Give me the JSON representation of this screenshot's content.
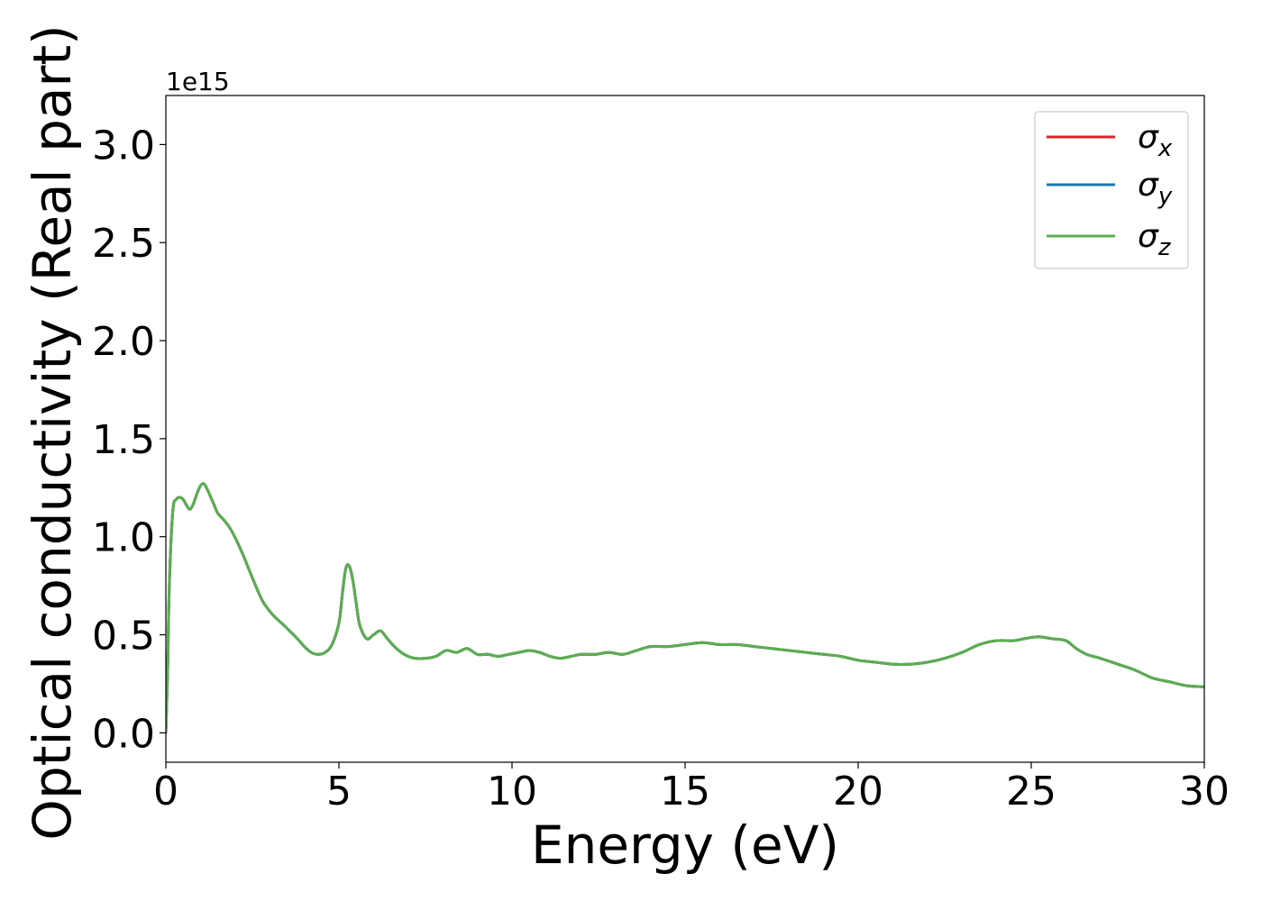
{
  "chart_data": {
    "type": "line",
    "xlabel": "Energy (eV)",
    "ylabel": "Optical conductivity (Real part)",
    "y_offset_label": "1e15",
    "xlim": [
      0,
      30
    ],
    "ylim": [
      -0.15,
      3.25
    ],
    "x_ticks": [
      0,
      5,
      10,
      15,
      20,
      25,
      30
    ],
    "x_tick_labels": [
      "0",
      "5",
      "10",
      "15",
      "20",
      "25",
      "30"
    ],
    "y_ticks": [
      0.0,
      0.5,
      1.0,
      1.5,
      2.0,
      2.5,
      3.0
    ],
    "y_tick_labels": [
      "0.0",
      "0.5",
      "1.0",
      "1.5",
      "2.0",
      "2.5",
      "3.0"
    ],
    "grid": false,
    "legend_position": "top-right",
    "x": [
      0,
      0.05,
      0.1,
      0.2,
      0.3,
      0.4,
      0.5,
      0.6,
      0.7,
      0.8,
      0.9,
      1.0,
      1.1,
      1.2,
      1.3,
      1.4,
      1.5,
      1.7,
      1.9,
      2.2,
      2.5,
      2.8,
      3.1,
      3.4,
      3.8,
      4.0,
      4.2,
      4.4,
      4.6,
      4.8,
      5.0,
      5.1,
      5.2,
      5.3,
      5.4,
      5.5,
      5.6,
      5.8,
      6.0,
      6.2,
      6.4,
      6.6,
      6.8,
      7.0,
      7.2,
      7.5,
      7.8,
      8.1,
      8.4,
      8.7,
      9.0,
      9.3,
      9.6,
      9.9,
      10.2,
      10.5,
      10.8,
      11.1,
      11.4,
      11.7,
      12.0,
      12.4,
      12.8,
      13.2,
      13.6,
      14.0,
      14.5,
      15.0,
      15.5,
      16.0,
      16.5,
      17.0,
      17.5,
      18.0,
      18.5,
      19.0,
      19.5,
      20.0,
      20.5,
      21.0,
      21.5,
      22.0,
      22.5,
      23.0,
      23.5,
      24.0,
      24.5,
      24.8,
      25.2,
      25.6,
      26.0,
      26.3,
      26.6,
      27.0,
      27.5,
      28.0,
      28.5,
      29.0,
      29.5,
      30.0
    ],
    "series": [
      {
        "name": "σx",
        "color": "#d62728",
        "values": [
          0.0,
          0.3,
          0.75,
          1.13,
          1.19,
          1.2,
          1.19,
          1.16,
          1.14,
          1.17,
          1.22,
          1.26,
          1.27,
          1.24,
          1.2,
          1.16,
          1.12,
          1.08,
          1.03,
          0.92,
          0.79,
          0.67,
          0.6,
          0.55,
          0.48,
          0.44,
          0.41,
          0.4,
          0.41,
          0.45,
          0.56,
          0.71,
          0.84,
          0.85,
          0.78,
          0.66,
          0.55,
          0.48,
          0.5,
          0.52,
          0.48,
          0.44,
          0.41,
          0.39,
          0.38,
          0.38,
          0.39,
          0.42,
          0.41,
          0.43,
          0.4,
          0.4,
          0.39,
          0.4,
          0.41,
          0.42,
          0.41,
          0.39,
          0.38,
          0.39,
          0.4,
          0.4,
          0.41,
          0.4,
          0.42,
          0.44,
          0.44,
          0.45,
          0.46,
          0.45,
          0.45,
          0.44,
          0.43,
          0.42,
          0.41,
          0.4,
          0.39,
          0.37,
          0.36,
          0.35,
          0.35,
          0.36,
          0.38,
          0.41,
          0.45,
          0.47,
          0.47,
          0.48,
          0.49,
          0.48,
          0.47,
          0.43,
          0.4,
          0.38,
          0.35,
          0.32,
          0.28,
          0.26,
          0.24,
          0.235
        ]
      },
      {
        "name": "σy",
        "color": "#1f77b4",
        "values": [
          0.0,
          0.3,
          0.75,
          1.13,
          1.19,
          1.2,
          1.19,
          1.16,
          1.14,
          1.17,
          1.22,
          1.26,
          1.27,
          1.24,
          1.2,
          1.16,
          1.12,
          1.08,
          1.03,
          0.92,
          0.79,
          0.67,
          0.6,
          0.55,
          0.48,
          0.44,
          0.41,
          0.4,
          0.41,
          0.45,
          0.56,
          0.71,
          0.84,
          0.85,
          0.78,
          0.66,
          0.55,
          0.48,
          0.5,
          0.52,
          0.48,
          0.44,
          0.41,
          0.39,
          0.38,
          0.38,
          0.39,
          0.42,
          0.41,
          0.43,
          0.4,
          0.4,
          0.39,
          0.4,
          0.41,
          0.42,
          0.41,
          0.39,
          0.38,
          0.39,
          0.4,
          0.4,
          0.41,
          0.4,
          0.42,
          0.44,
          0.44,
          0.45,
          0.46,
          0.45,
          0.45,
          0.44,
          0.43,
          0.42,
          0.41,
          0.4,
          0.39,
          0.37,
          0.36,
          0.35,
          0.35,
          0.36,
          0.38,
          0.41,
          0.45,
          0.47,
          0.47,
          0.48,
          0.49,
          0.48,
          0.47,
          0.43,
          0.4,
          0.38,
          0.35,
          0.32,
          0.28,
          0.26,
          0.24,
          0.235
        ]
      },
      {
        "name": "σz",
        "color": "#5aae4f",
        "values": [
          0.0,
          0.3,
          0.75,
          1.13,
          1.19,
          1.2,
          1.19,
          1.16,
          1.14,
          1.17,
          1.22,
          1.26,
          1.27,
          1.24,
          1.2,
          1.16,
          1.12,
          1.08,
          1.03,
          0.92,
          0.79,
          0.67,
          0.6,
          0.55,
          0.48,
          0.44,
          0.41,
          0.4,
          0.41,
          0.45,
          0.56,
          0.71,
          0.84,
          0.85,
          0.78,
          0.66,
          0.55,
          0.48,
          0.5,
          0.52,
          0.48,
          0.44,
          0.41,
          0.39,
          0.38,
          0.38,
          0.39,
          0.42,
          0.41,
          0.43,
          0.4,
          0.4,
          0.39,
          0.4,
          0.41,
          0.42,
          0.41,
          0.39,
          0.38,
          0.39,
          0.4,
          0.4,
          0.41,
          0.4,
          0.42,
          0.44,
          0.44,
          0.45,
          0.46,
          0.45,
          0.45,
          0.44,
          0.43,
          0.42,
          0.41,
          0.4,
          0.39,
          0.37,
          0.36,
          0.35,
          0.35,
          0.36,
          0.38,
          0.41,
          0.45,
          0.47,
          0.47,
          0.48,
          0.49,
          0.48,
          0.47,
          0.43,
          0.4,
          0.38,
          0.35,
          0.32,
          0.28,
          0.26,
          0.24,
          0.235
        ]
      }
    ],
    "legend": [
      {
        "symbol": "σ",
        "sub": "x"
      },
      {
        "symbol": "σ",
        "sub": "y"
      },
      {
        "symbol": "σ",
        "sub": "z"
      }
    ]
  }
}
